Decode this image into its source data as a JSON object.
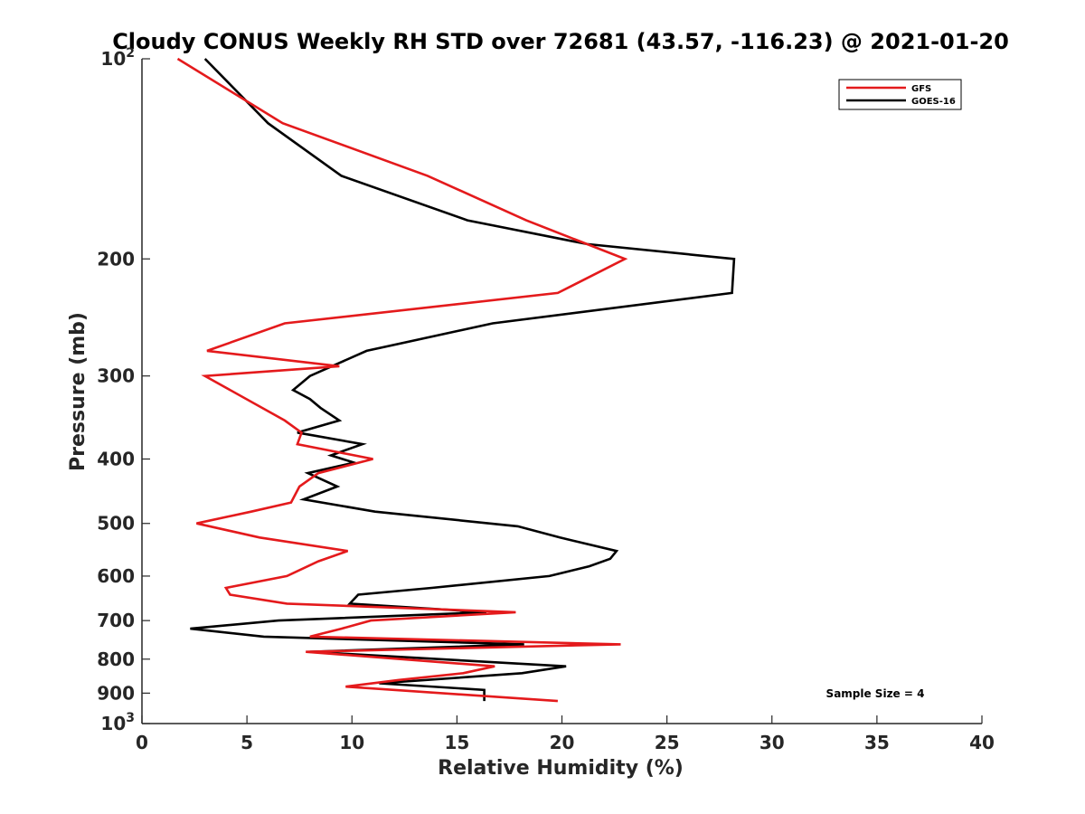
{
  "chart_data": {
    "type": "line",
    "title": "Cloudy CONUS Weekly RH STD over 72681 (43.57, -116.23) @ 2021-01-20",
    "xlabel": "Relative Humidity (%)",
    "ylabel": "Pressure (mb)",
    "xlim": [
      0,
      40
    ],
    "ylim": [
      100,
      1000
    ],
    "y_scale": "log",
    "y_reversed": true,
    "grid": false,
    "legend_position": "top-right",
    "x_ticks": [
      "0",
      "5",
      "10",
      "15",
      "20",
      "25",
      "30",
      "35",
      "40"
    ],
    "x_tick_values": [
      0,
      5,
      10,
      15,
      20,
      25,
      30,
      35,
      40
    ],
    "y_ticks": [
      {
        "value": 100,
        "base": "10",
        "exp": "2"
      },
      {
        "value": 200,
        "label": "200"
      },
      {
        "value": 300,
        "label": "300"
      },
      {
        "value": 400,
        "label": "400"
      },
      {
        "value": 500,
        "label": "500"
      },
      {
        "value": 600,
        "label": "600"
      },
      {
        "value": 700,
        "label": "700"
      },
      {
        "value": 800,
        "label": "800"
      },
      {
        "value": 900,
        "label": "900"
      },
      {
        "value": 1000,
        "base": "10",
        "exp": "3"
      }
    ],
    "annotation": "Sample Size = 4",
    "series": [
      {
        "name": "GFS",
        "color": "#e41a1c",
        "points": [
          {
            "x": 1.7,
            "p": 100
          },
          {
            "x": 6.7,
            "p": 125
          },
          {
            "x": 13.6,
            "p": 150
          },
          {
            "x": 18.3,
            "p": 175
          },
          {
            "x": 23.0,
            "p": 200
          },
          {
            "x": 19.8,
            "p": 225
          },
          {
            "x": 6.8,
            "p": 250
          },
          {
            "x": 3.1,
            "p": 275
          },
          {
            "x": 9.4,
            "p": 290
          },
          {
            "x": 3.0,
            "p": 300
          },
          {
            "x": 6.8,
            "p": 350
          },
          {
            "x": 7.6,
            "p": 365
          },
          {
            "x": 7.4,
            "p": 380
          },
          {
            "x": 11.0,
            "p": 400
          },
          {
            "x": 8.4,
            "p": 420
          },
          {
            "x": 7.5,
            "p": 440
          },
          {
            "x": 7.1,
            "p": 465
          },
          {
            "x": 5.2,
            "p": 480
          },
          {
            "x": 2.6,
            "p": 500
          },
          {
            "x": 5.6,
            "p": 525
          },
          {
            "x": 9.8,
            "p": 550
          },
          {
            "x": 8.4,
            "p": 570
          },
          {
            "x": 6.9,
            "p": 600
          },
          {
            "x": 4.0,
            "p": 625
          },
          {
            "x": 4.2,
            "p": 640
          },
          {
            "x": 6.9,
            "p": 660
          },
          {
            "x": 17.8,
            "p": 680
          },
          {
            "x": 10.9,
            "p": 700
          },
          {
            "x": 9.5,
            "p": 720
          },
          {
            "x": 8.0,
            "p": 740
          },
          {
            "x": 22.8,
            "p": 760
          },
          {
            "x": 7.8,
            "p": 780
          },
          {
            "x": 16.8,
            "p": 820
          },
          {
            "x": 15.3,
            "p": 840
          },
          {
            "x": 12.2,
            "p": 860
          },
          {
            "x": 9.7,
            "p": 880
          },
          {
            "x": 19.8,
            "p": 925
          }
        ]
      },
      {
        "name": "GOES-16",
        "color": "#000000",
        "points": [
          {
            "x": 3.0,
            "p": 100
          },
          {
            "x": 6.0,
            "p": 125
          },
          {
            "x": 9.5,
            "p": 150
          },
          {
            "x": 15.5,
            "p": 175
          },
          {
            "x": 21.2,
            "p": 190
          },
          {
            "x": 28.2,
            "p": 200
          },
          {
            "x": 28.1,
            "p": 225
          },
          {
            "x": 16.7,
            "p": 250
          },
          {
            "x": 10.7,
            "p": 275
          },
          {
            "x": 8.0,
            "p": 300
          },
          {
            "x": 7.2,
            "p": 315
          },
          {
            "x": 8.0,
            "p": 325
          },
          {
            "x": 8.5,
            "p": 335
          },
          {
            "x": 9.4,
            "p": 350
          },
          {
            "x": 7.4,
            "p": 365
          },
          {
            "x": 10.5,
            "p": 380
          },
          {
            "x": 9.0,
            "p": 395
          },
          {
            "x": 10.1,
            "p": 405
          },
          {
            "x": 7.9,
            "p": 420
          },
          {
            "x": 9.3,
            "p": 440
          },
          {
            "x": 7.7,
            "p": 460
          },
          {
            "x": 11.1,
            "p": 480
          },
          {
            "x": 17.9,
            "p": 505
          },
          {
            "x": 19.9,
            "p": 525
          },
          {
            "x": 22.6,
            "p": 550
          },
          {
            "x": 22.3,
            "p": 565
          },
          {
            "x": 21.3,
            "p": 580
          },
          {
            "x": 19.4,
            "p": 600
          },
          {
            "x": 13.8,
            "p": 625
          },
          {
            "x": 10.3,
            "p": 640
          },
          {
            "x": 9.9,
            "p": 660
          },
          {
            "x": 16.4,
            "p": 680
          },
          {
            "x": 6.5,
            "p": 700
          },
          {
            "x": 2.3,
            "p": 720
          },
          {
            "x": 5.8,
            "p": 740
          },
          {
            "x": 18.2,
            "p": 760
          },
          {
            "x": 8.0,
            "p": 780
          },
          {
            "x": 20.2,
            "p": 820
          },
          {
            "x": 18.1,
            "p": 840
          },
          {
            "x": 11.3,
            "p": 870
          },
          {
            "x": 16.3,
            "p": 890
          },
          {
            "x": 16.3,
            "p": 925
          }
        ]
      }
    ]
  }
}
